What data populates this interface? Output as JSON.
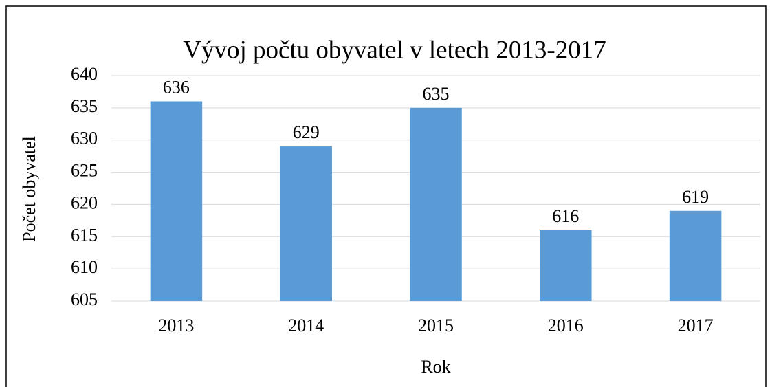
{
  "chart_data": {
    "type": "bar",
    "title": "Vývoj počtu obyvatel v letech 2013-2017",
    "x_label": "Rok",
    "y_label": "Počet obyvatel",
    "categories": [
      "2013",
      "2014",
      "2015",
      "2016",
      "2017"
    ],
    "values": [
      636,
      629,
      635,
      616,
      619
    ],
    "color": "#5b9bd5",
    "ylim": [
      605,
      640
    ],
    "yticks": [
      605,
      610,
      615,
      620,
      625,
      630,
      635,
      640
    ],
    "grid": true
  }
}
